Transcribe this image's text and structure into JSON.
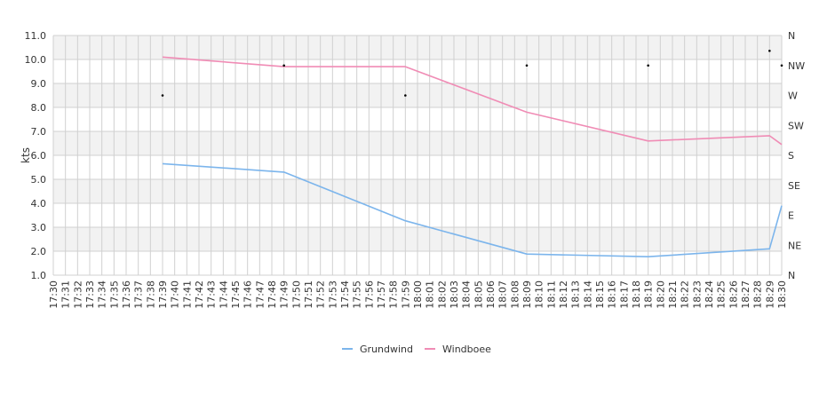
{
  "chart_data": {
    "type": "line",
    "title": "",
    "ylabel": "kts",
    "xlabel": "",
    "ylim": [
      1.0,
      11.0
    ],
    "y_ticks": [
      "1.0",
      "2.0",
      "3.0",
      "4.0",
      "5.0",
      "6.0",
      "7.0",
      "8.0",
      "9.0",
      "10.0",
      "11.0"
    ],
    "x_ticks": [
      "17:30",
      "17:31",
      "17:32",
      "17:33",
      "17:34",
      "17:35",
      "17:36",
      "17:37",
      "17:38",
      "17:39",
      "17:40",
      "17:41",
      "17:42",
      "17:43",
      "17:44",
      "17:45",
      "17:46",
      "17:47",
      "17:48",
      "17:49",
      "17:50",
      "17:51",
      "17:52",
      "17:53",
      "17:54",
      "17:55",
      "17:56",
      "17:57",
      "17:58",
      "17:59",
      "18:00",
      "18:01",
      "18:02",
      "18:03",
      "18:04",
      "18:05",
      "18:06",
      "18:07",
      "18:08",
      "18:09",
      "18:10",
      "18:11",
      "18:12",
      "18:13",
      "18:14",
      "18:15",
      "18:16",
      "18:17",
      "18:18",
      "18:19",
      "18:20",
      "18:21",
      "18:22",
      "18:23",
      "18:24",
      "18:25",
      "18:26",
      "18:27",
      "18:28",
      "18:29",
      "18:30"
    ],
    "right_axis": {
      "labels": [
        "N",
        "NE",
        "E",
        "SE",
        "S",
        "SW",
        "W",
        "NW",
        "N"
      ],
      "range": [
        0,
        360
      ]
    },
    "grid": true,
    "legend_position": "bottom",
    "series": [
      {
        "name": "Grundwind",
        "color": "#7cb5ec",
        "x": [
          9,
          19,
          29,
          39,
          49,
          59,
          60
        ],
        "y": [
          5.65,
          5.3,
          3.27,
          1.88,
          1.77,
          2.1,
          3.9
        ]
      },
      {
        "name": "Windboee",
        "color": "#f08cb5",
        "x": [
          9,
          19,
          29,
          39,
          49,
          59,
          60
        ],
        "y": [
          10.1,
          9.7,
          9.7,
          7.8,
          6.6,
          6.82,
          6.45
        ]
      }
    ],
    "direction": {
      "marker_color": "#000000",
      "x": [
        9,
        19,
        29,
        39,
        49,
        59,
        60
      ],
      "deg": [
        270,
        315,
        270,
        315,
        315,
        337,
        315
      ]
    }
  }
}
